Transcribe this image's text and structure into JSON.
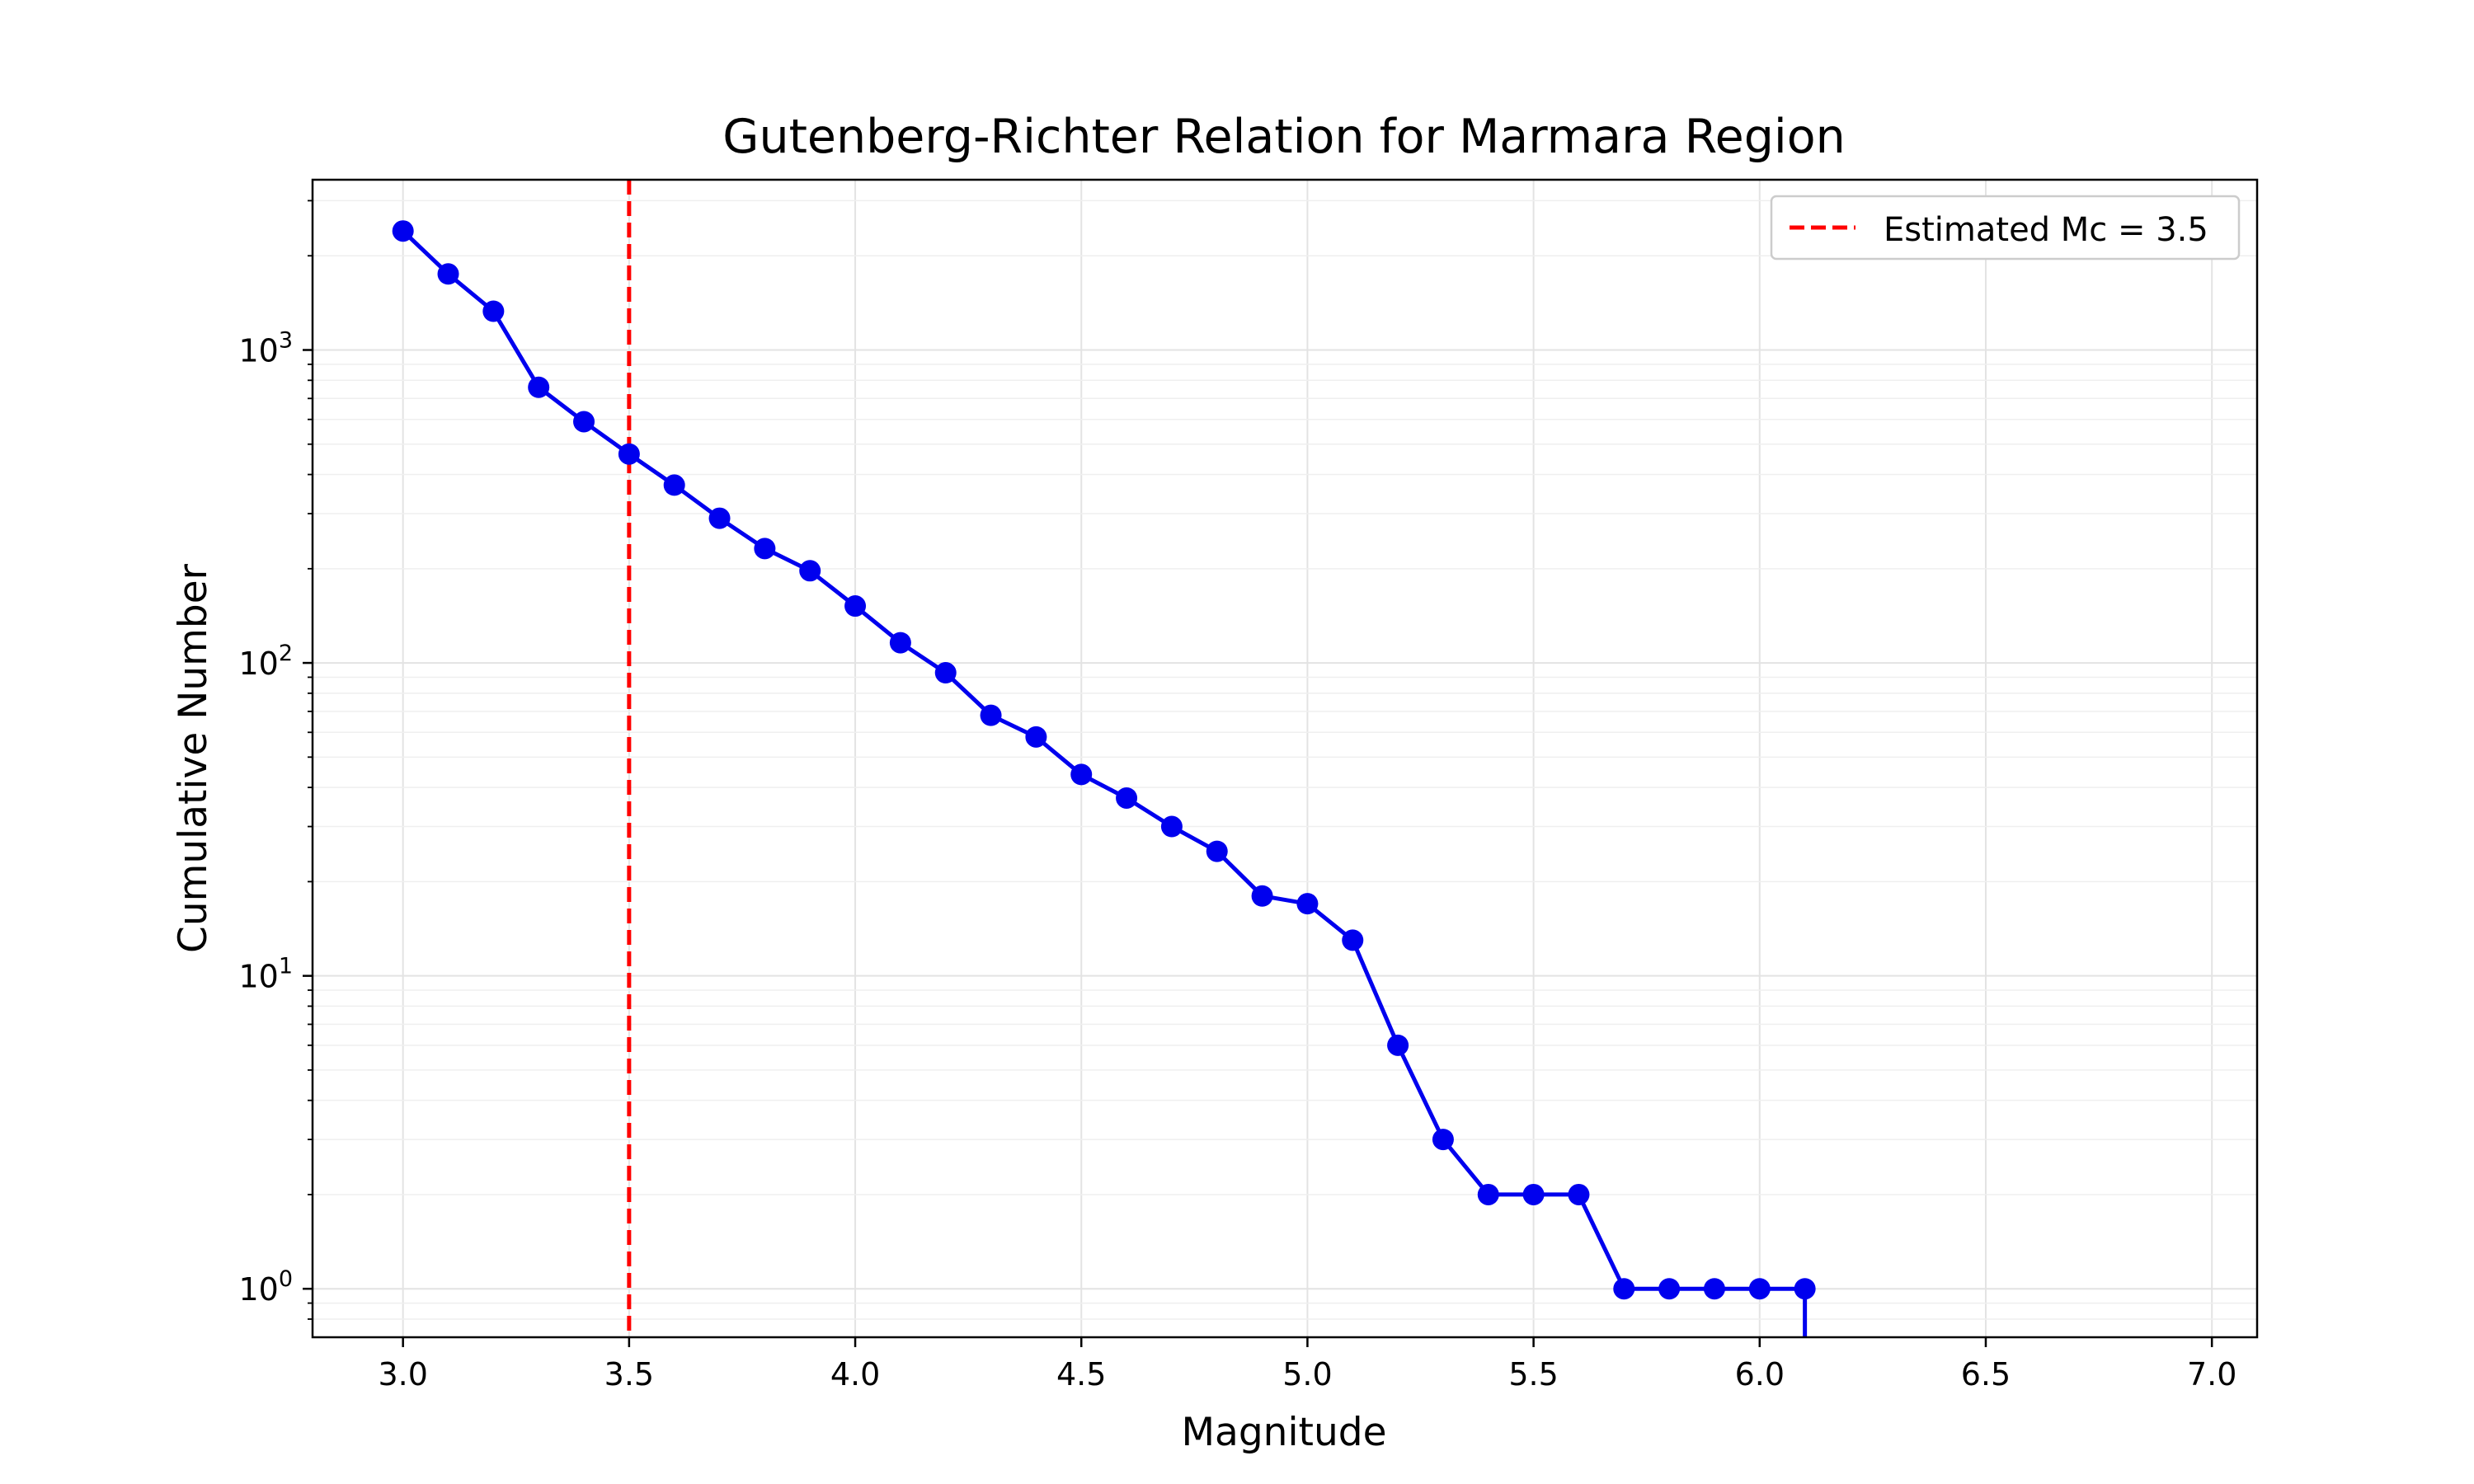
{
  "chart_data": {
    "type": "line",
    "title": "Gutenberg-Richter Relation for Marmara Region",
    "xlabel": "Magnitude",
    "ylabel": "Cumulative Number",
    "xlim": [
      2.8,
      7.1
    ],
    "ylim": [
      0.7,
      3500
    ],
    "y_scale": "log",
    "grid": true,
    "legend_position": "top-right",
    "x_ticks": [
      3.0,
      3.5,
      4.0,
      4.5,
      5.0,
      5.5,
      6.0,
      6.5,
      7.0
    ],
    "x_tick_labels": [
      "3.0",
      "3.5",
      "4.0",
      "4.5",
      "5.0",
      "5.5",
      "6.0",
      "6.5",
      "7.0"
    ],
    "y_ticks": [
      {
        "value": 1,
        "base": "10",
        "exp": "0"
      },
      {
        "value": 10,
        "base": "10",
        "exp": "1"
      },
      {
        "value": 100,
        "base": "10",
        "exp": "2"
      },
      {
        "value": 1000,
        "base": "10",
        "exp": "3"
      }
    ],
    "series": [
      {
        "color": "#0000ee",
        "marker": "circle",
        "x": [
          3.0,
          3.1,
          3.2,
          3.3,
          3.4,
          3.5,
          3.6,
          3.7,
          3.8,
          3.9,
          4.0,
          4.1,
          4.2,
          4.3,
          4.4,
          4.5,
          4.6,
          4.7,
          4.8,
          4.9,
          5.0,
          5.1,
          5.2,
          5.3,
          5.4,
          5.5,
          5.6,
          5.7,
          5.8,
          5.9,
          6.0,
          6.1
        ],
        "y": [
          2400,
          1750,
          1330,
          760,
          590,
          465,
          370,
          290,
          232,
          197,
          152,
          116,
          93,
          68,
          58,
          44,
          37,
          30,
          25,
          18,
          17,
          13,
          6,
          3,
          2,
          2,
          2,
          1,
          1,
          1,
          1,
          1
        ]
      }
    ],
    "reference_line": {
      "orientation": "vertical",
      "x": 3.5,
      "color": "#ff0000",
      "style": "dashed",
      "label": "Estimated Mc = 3.5"
    }
  }
}
